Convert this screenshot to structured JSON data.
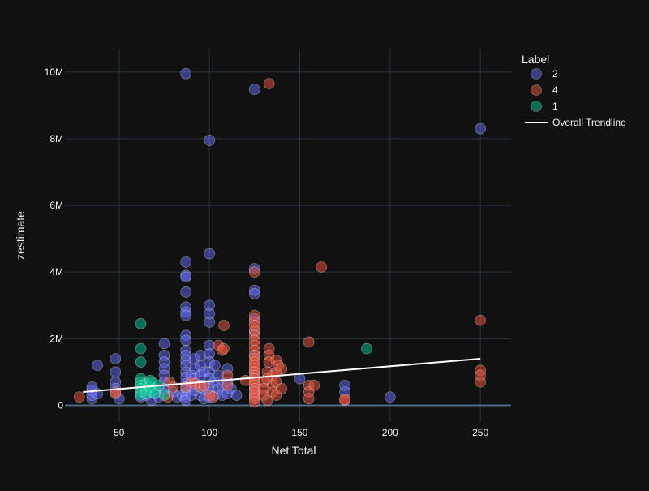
{
  "chart_data": {
    "type": "scatter",
    "title": "",
    "xlabel": "Net Total",
    "ylabel": "zestimate",
    "xlim": [
      20,
      267
    ],
    "ylim": [
      -500000,
      10700000
    ],
    "x_ticks": [
      {
        "value": 50,
        "label": "50"
      },
      {
        "value": 100,
        "label": "100"
      },
      {
        "value": 150,
        "label": "150"
      },
      {
        "value": 200,
        "label": "200"
      },
      {
        "value": 250,
        "label": "250"
      }
    ],
    "y_ticks": [
      {
        "value": 0,
        "label": "0"
      },
      {
        "value": 2000000,
        "label": "2M"
      },
      {
        "value": 4000000,
        "label": "4M"
      },
      {
        "value": 6000000,
        "label": "6M"
      },
      {
        "value": 8000000,
        "label": "8M"
      },
      {
        "value": 10000000,
        "label": "10M"
      }
    ],
    "grid": true,
    "legend": {
      "title": "Label",
      "placement": "top-right"
    },
    "series": [
      {
        "name": "2",
        "color": "#636efa",
        "points": [
          [
            35,
            200000
          ],
          [
            35,
            300000
          ],
          [
            35,
            450000
          ],
          [
            35,
            550000
          ],
          [
            38,
            1200000
          ],
          [
            38,
            350000
          ],
          [
            48,
            1400000
          ],
          [
            48,
            1000000
          ],
          [
            48,
            700000
          ],
          [
            48,
            500000
          ],
          [
            50,
            200000
          ],
          [
            62,
            250000
          ],
          [
            65,
            300000
          ],
          [
            68,
            150000
          ],
          [
            70,
            400000
          ],
          [
            72,
            250000
          ],
          [
            75,
            1850000
          ],
          [
            75,
            1500000
          ],
          [
            75,
            1300000
          ],
          [
            75,
            1100000
          ],
          [
            75,
            900000
          ],
          [
            75,
            700000
          ],
          [
            75,
            500000
          ],
          [
            75,
            350000
          ],
          [
            80,
            400000
          ],
          [
            82,
            250000
          ],
          [
            85,
            300000
          ],
          [
            87,
            9950000
          ],
          [
            87,
            4300000
          ],
          [
            87,
            3900000
          ],
          [
            87,
            3850000
          ],
          [
            87,
            3400000
          ],
          [
            87,
            2950000
          ],
          [
            87,
            2800000
          ],
          [
            87,
            2700000
          ],
          [
            87,
            2100000
          ],
          [
            87,
            1950000
          ],
          [
            87,
            1650000
          ],
          [
            87,
            1500000
          ],
          [
            87,
            1350000
          ],
          [
            87,
            1200000
          ],
          [
            87,
            1000000
          ],
          [
            87,
            850000
          ],
          [
            87,
            650000
          ],
          [
            87,
            500000
          ],
          [
            87,
            350000
          ],
          [
            87,
            250000
          ],
          [
            87,
            150000
          ],
          [
            90,
            900000
          ],
          [
            90,
            600000
          ],
          [
            90,
            300000
          ],
          [
            92,
            1400000
          ],
          [
            92,
            1100000
          ],
          [
            92,
            800000
          ],
          [
            92,
            450000
          ],
          [
            95,
            1500000
          ],
          [
            95,
            1200000
          ],
          [
            95,
            900000
          ],
          [
            95,
            600000
          ],
          [
            95,
            300000
          ],
          [
            97,
            1000000
          ],
          [
            97,
            500000
          ],
          [
            97,
            200000
          ],
          [
            100,
            7950000
          ],
          [
            100,
            4550000
          ],
          [
            100,
            3000000
          ],
          [
            100,
            2750000
          ],
          [
            100,
            2500000
          ],
          [
            100,
            1800000
          ],
          [
            100,
            1550000
          ],
          [
            100,
            1300000
          ],
          [
            100,
            1000000
          ],
          [
            100,
            800000
          ],
          [
            100,
            600000
          ],
          [
            100,
            400000
          ],
          [
            100,
            250000
          ],
          [
            103,
            1200000
          ],
          [
            103,
            700000
          ],
          [
            103,
            300000
          ],
          [
            105,
            900000
          ],
          [
            105,
            500000
          ],
          [
            107,
            600000
          ],
          [
            107,
            300000
          ],
          [
            110,
            1100000
          ],
          [
            110,
            700000
          ],
          [
            110,
            350000
          ],
          [
            112,
            500000
          ],
          [
            115,
            300000
          ],
          [
            125,
            9480000
          ],
          [
            125,
            4100000
          ],
          [
            125,
            3450000
          ],
          [
            125,
            3350000
          ],
          [
            125,
            2600000
          ],
          [
            125,
            2200000
          ],
          [
            125,
            1500000
          ],
          [
            125,
            1000000
          ],
          [
            125,
            500000
          ],
          [
            125,
            250000
          ],
          [
            150,
            800000
          ],
          [
            175,
            600000
          ],
          [
            175,
            400000
          ],
          [
            200,
            250000
          ],
          [
            250,
            8300000
          ]
        ]
      },
      {
        "name": "4",
        "color": "#ef553b",
        "points": [
          [
            28,
            250000
          ],
          [
            48,
            350000
          ],
          [
            48,
            400000
          ],
          [
            77,
            250000
          ],
          [
            78,
            700000
          ],
          [
            80,
            550000
          ],
          [
            87,
            550000
          ],
          [
            90,
            700000
          ],
          [
            92,
            650000
          ],
          [
            95,
            550000
          ],
          [
            97,
            600000
          ],
          [
            100,
            300000
          ],
          [
            102,
            250000
          ],
          [
            105,
            1800000
          ],
          [
            107,
            1650000
          ],
          [
            108,
            1700000
          ],
          [
            108,
            2400000
          ],
          [
            110,
            900000
          ],
          [
            110,
            600000
          ],
          [
            120,
            750000
          ],
          [
            125,
            4000000
          ],
          [
            125,
            2700000
          ],
          [
            125,
            2500000
          ],
          [
            125,
            2400000
          ],
          [
            125,
            2250000
          ],
          [
            125,
            2100000
          ],
          [
            125,
            1950000
          ],
          [
            125,
            1800000
          ],
          [
            125,
            1650000
          ],
          [
            125,
            1500000
          ],
          [
            125,
            1400000
          ],
          [
            125,
            1300000
          ],
          [
            125,
            1200000
          ],
          [
            125,
            1100000
          ],
          [
            125,
            1000000
          ],
          [
            125,
            900000
          ],
          [
            125,
            800000
          ],
          [
            125,
            700000
          ],
          [
            125,
            600000
          ],
          [
            125,
            500000
          ],
          [
            125,
            400000
          ],
          [
            125,
            300000
          ],
          [
            125,
            200000
          ],
          [
            125,
            100000
          ],
          [
            130,
            700000
          ],
          [
            130,
            500000
          ],
          [
            130,
            300000
          ],
          [
            132,
            1000000
          ],
          [
            132,
            800000
          ],
          [
            132,
            150000
          ],
          [
            133,
            9650000
          ],
          [
            133,
            1700000
          ],
          [
            133,
            1500000
          ],
          [
            133,
            1300000
          ],
          [
            135,
            900000
          ],
          [
            135,
            600000
          ],
          [
            135,
            400000
          ],
          [
            137,
            1350000
          ],
          [
            137,
            1000000
          ],
          [
            137,
            700000
          ],
          [
            137,
            300000
          ],
          [
            138,
            1200000
          ],
          [
            140,
            1100000
          ],
          [
            140,
            500000
          ],
          [
            155,
            1900000
          ],
          [
            155,
            600000
          ],
          [
            155,
            400000
          ],
          [
            155,
            200000
          ],
          [
            158,
            600000
          ],
          [
            162,
            4150000
          ],
          [
            175,
            150000
          ],
          [
            175,
            180000
          ],
          [
            250,
            2550000
          ],
          [
            250,
            1050000
          ],
          [
            250,
            900000
          ],
          [
            250,
            700000
          ]
        ]
      },
      {
        "name": "1",
        "color": "#00cc96",
        "points": [
          [
            62,
            2450000
          ],
          [
            62,
            1700000
          ],
          [
            62,
            1300000
          ],
          [
            62,
            800000
          ],
          [
            62,
            700000
          ],
          [
            62,
            600000
          ],
          [
            62,
            500000
          ],
          [
            62,
            400000
          ],
          [
            62,
            300000
          ],
          [
            65,
            650000
          ],
          [
            65,
            450000
          ],
          [
            65,
            350000
          ],
          [
            67,
            750000
          ],
          [
            67,
            550000
          ],
          [
            68,
            700000
          ],
          [
            68,
            400000
          ],
          [
            70,
            500000
          ],
          [
            70,
            350000
          ],
          [
            72,
            600000
          ],
          [
            75,
            300000
          ],
          [
            187,
            1700000
          ]
        ]
      }
    ],
    "trendline": {
      "name": "Overall Trendline",
      "color": "#ffffff",
      "x": [
        30,
        250
      ],
      "y": [
        400000,
        1400000
      ]
    }
  }
}
